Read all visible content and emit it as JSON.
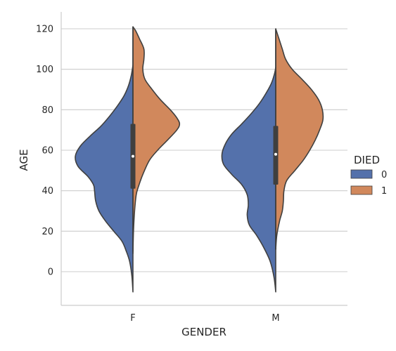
{
  "chart_data": {
    "type": "violin",
    "split_by": "DIED",
    "xlabel": "GENDER",
    "ylabel": "AGE",
    "categories": [
      "F",
      "M"
    ],
    "ylim": [
      -16,
      128
    ],
    "yticks": [
      0,
      20,
      40,
      60,
      80,
      100,
      120
    ],
    "grid": "horizontal",
    "legend": {
      "title": "DIED",
      "placement": "right",
      "entries": [
        {
          "label": "0",
          "color": "#5471ab"
        },
        {
          "label": "1",
          "color": "#d1885c"
        }
      ]
    },
    "violins": [
      {
        "category": "F",
        "side": "left",
        "hue": "0",
        "color": "#5471ab",
        "profile": [
          [
            -10,
            0.0
          ],
          [
            -2,
            0.02
          ],
          [
            5,
            0.06
          ],
          [
            10,
            0.12
          ],
          [
            15,
            0.2
          ],
          [
            20,
            0.35
          ],
          [
            25,
            0.5
          ],
          [
            30,
            0.62
          ],
          [
            35,
            0.68
          ],
          [
            40,
            0.7
          ],
          [
            43,
            0.72
          ],
          [
            47,
            0.82
          ],
          [
            52,
            1.0
          ],
          [
            57,
            1.05
          ],
          [
            62,
            0.96
          ],
          [
            67,
            0.78
          ],
          [
            72,
            0.58
          ],
          [
            77,
            0.42
          ],
          [
            82,
            0.28
          ],
          [
            87,
            0.16
          ],
          [
            92,
            0.08
          ],
          [
            97,
            0.03
          ],
          [
            102,
            0.0
          ]
        ]
      },
      {
        "category": "F",
        "side": "right",
        "hue": "1",
        "color": "#d1885c",
        "profile": [
          [
            9,
            0.0
          ],
          [
            20,
            0.01
          ],
          [
            30,
            0.03
          ],
          [
            38,
            0.06
          ],
          [
            42,
            0.1
          ],
          [
            48,
            0.18
          ],
          [
            55,
            0.3
          ],
          [
            60,
            0.45
          ],
          [
            65,
            0.63
          ],
          [
            70,
            0.8
          ],
          [
            73,
            0.85
          ],
          [
            76,
            0.8
          ],
          [
            80,
            0.68
          ],
          [
            85,
            0.5
          ],
          [
            90,
            0.35
          ],
          [
            95,
            0.22
          ],
          [
            100,
            0.18
          ],
          [
            105,
            0.2
          ],
          [
            110,
            0.2
          ],
          [
            115,
            0.12
          ],
          [
            119,
            0.05
          ],
          [
            121,
            0.0
          ]
        ]
      },
      {
        "category": "M",
        "side": "left",
        "hue": "0",
        "color": "#5471ab",
        "profile": [
          [
            -10,
            0.0
          ],
          [
            -3,
            0.03
          ],
          [
            5,
            0.1
          ],
          [
            12,
            0.22
          ],
          [
            18,
            0.35
          ],
          [
            23,
            0.48
          ],
          [
            28,
            0.52
          ],
          [
            33,
            0.5
          ],
          [
            38,
            0.52
          ],
          [
            43,
            0.62
          ],
          [
            48,
            0.8
          ],
          [
            53,
            0.95
          ],
          [
            58,
            0.98
          ],
          [
            63,
            0.92
          ],
          [
            68,
            0.8
          ],
          [
            73,
            0.62
          ],
          [
            78,
            0.45
          ],
          [
            83,
            0.3
          ],
          [
            88,
            0.18
          ],
          [
            93,
            0.08
          ],
          [
            98,
            0.02
          ],
          [
            101,
            0.0
          ]
        ]
      },
      {
        "category": "M",
        "side": "right",
        "hue": "1",
        "color": "#d1885c",
        "profile": [
          [
            11,
            0.0
          ],
          [
            18,
            0.02
          ],
          [
            25,
            0.07
          ],
          [
            30,
            0.12
          ],
          [
            35,
            0.14
          ],
          [
            40,
            0.15
          ],
          [
            45,
            0.2
          ],
          [
            50,
            0.35
          ],
          [
            55,
            0.5
          ],
          [
            60,
            0.62
          ],
          [
            65,
            0.72
          ],
          [
            70,
            0.8
          ],
          [
            75,
            0.86
          ],
          [
            80,
            0.85
          ],
          [
            85,
            0.78
          ],
          [
            90,
            0.65
          ],
          [
            95,
            0.48
          ],
          [
            100,
            0.3
          ],
          [
            105,
            0.18
          ],
          [
            110,
            0.12
          ],
          [
            115,
            0.06
          ],
          [
            120,
            0.0
          ]
        ]
      }
    ],
    "inner_box": [
      {
        "category": "F",
        "q1": 41,
        "median": 57,
        "q3": 73,
        "whisker_low": 10,
        "whisker_high": 121
      },
      {
        "category": "M",
        "q1": 43,
        "median": 58,
        "q3": 72,
        "whisker_low": 11,
        "whisker_high": 120
      }
    ]
  }
}
